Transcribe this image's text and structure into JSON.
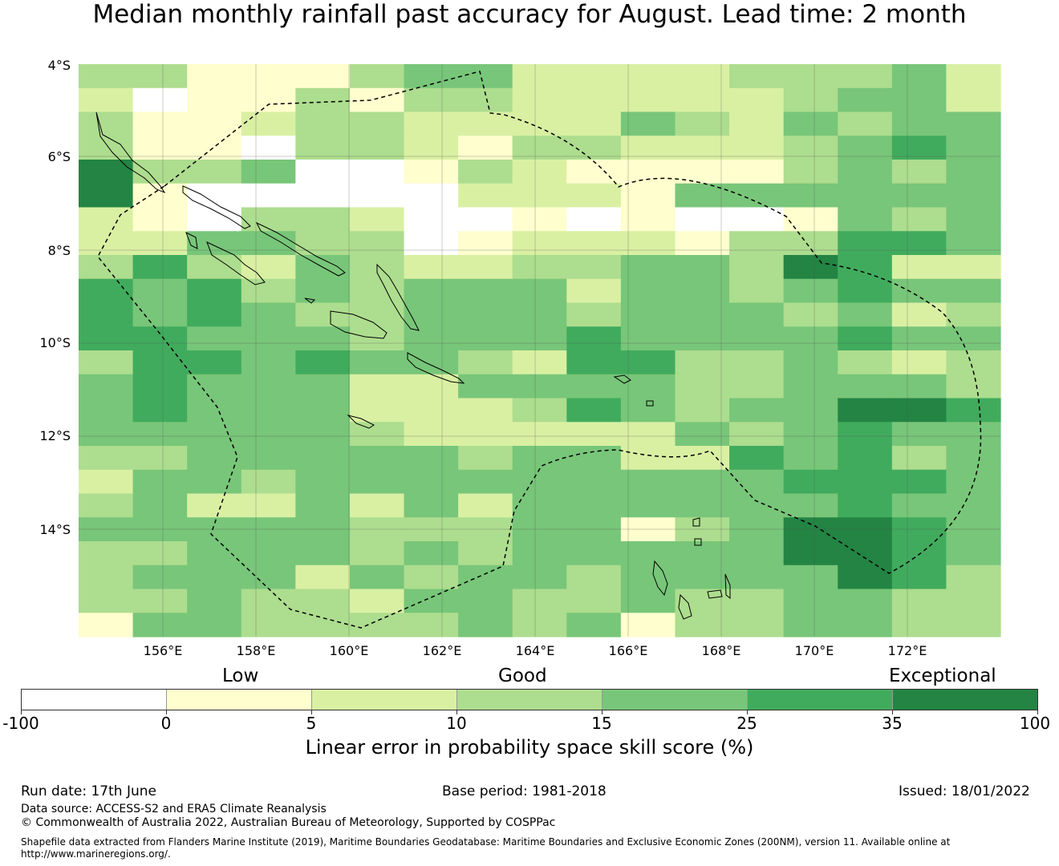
{
  "title": "Median monthly rainfall past accuracy for August. Lead time: 2 month",
  "map": {
    "lat_labels": [
      "4°S",
      "6°S",
      "8°S",
      "10°S",
      "12°S",
      "14°S"
    ],
    "lon_labels": [
      "156°E",
      "158°E",
      "160°E",
      "162°E",
      "164°E",
      "166°E",
      "168°E",
      "170°E",
      "172°E"
    ],
    "data_category_rows": [
      "33111344222233342",
      "20113133222223442",
      "31123322224324344",
      "31103321332223454",
      "63340013211113434",
      "61000002221444444",
      "21033200101001434",
      "22443301222133554",
      "35324322334436522",
      "54534344424434544",
      "54543344434443423",
      "55444344454444544",
      "35545443255334323",
      "45444224444334443",
      "45444222354344665",
      "44444322222434544",
      "33444443442254534",
      "24434444444445554",
      "34224242444444544",
      "44444333441346654",
      "33444343444446654",
      "34442434434444653",
      "33433244334334433",
      "14433334341334433"
    ],
    "palette": [
      "#ffffff",
      "#fefece",
      "#d9f0a3",
      "#addd8e",
      "#78c679",
      "#41ab5d",
      "#238443"
    ]
  },
  "legend": {
    "categories": [
      "Low",
      "Good",
      "Exceptional"
    ],
    "ticks": [
      "-100",
      "0",
      "5",
      "10",
      "15",
      "25",
      "35",
      "100"
    ],
    "colors": [
      "#ffffff",
      "#fefece",
      "#d9f0a3",
      "#addd8e",
      "#78c679",
      "#41ab5d",
      "#238443"
    ],
    "title": "Linear error in probability space skill score (%)"
  },
  "footer": {
    "run_date": "Run date: 17th June",
    "base_period": "Base period: 1981-2018",
    "issued": "Issued: 18/01/2022",
    "data_source": "Data source: ACCESS-S2 and ERA5 Climate Reanalysis",
    "copyright": "© Commonwealth of Australia 2022, Australian Bureau of Meteorology, Supported by COSPPac",
    "shapefile_line1": "Shapefile data extracted from Flanders Marine Institute (2019), Maritime Boundaries Geodatabase: Maritime Boundaries and Exclusive Economic Zones (200NM), version 11. Available online at",
    "shapefile_line2": "http://www.marineregions.org/."
  }
}
